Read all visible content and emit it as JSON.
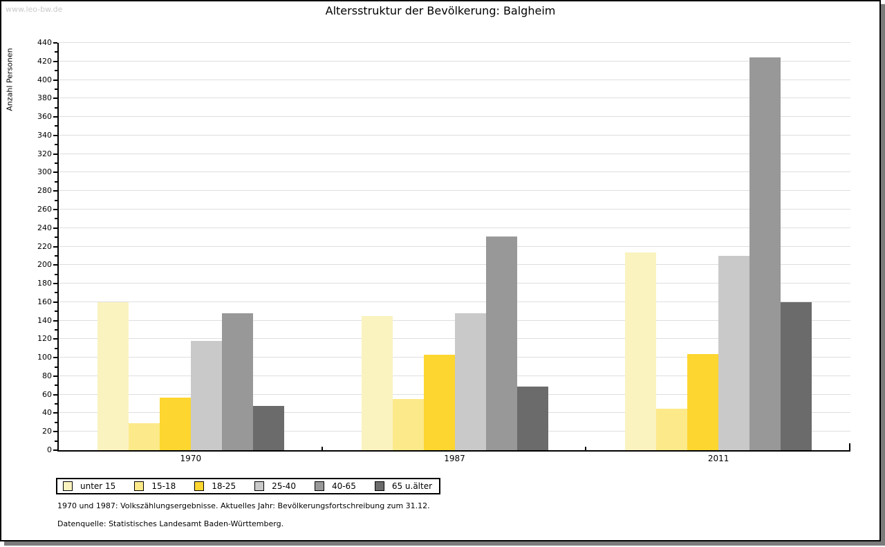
{
  "watermark": "www.leo-bw.de",
  "chart_data": {
    "type": "bar",
    "title": "Altersstruktur der Bevölkerung: Balgheim",
    "ylabel": "Anzahl Personen",
    "xlabel": "",
    "categories": [
      "1970",
      "1987",
      "2011"
    ],
    "series": [
      {
        "name": "unter 15",
        "color": "#faf3c0",
        "values": [
          160,
          145,
          214
        ]
      },
      {
        "name": "15-18",
        "color": "#fce98a",
        "values": [
          29,
          55,
          45
        ]
      },
      {
        "name": "18-25",
        "color": "#fdd62f",
        "values": [
          57,
          103,
          104
        ]
      },
      {
        "name": "25-40",
        "color": "#c9c9c9",
        "values": [
          118,
          148,
          210
        ]
      },
      {
        "name": "40-65",
        "color": "#989898",
        "values": [
          148,
          231,
          424
        ]
      },
      {
        "name": "65 u.älter",
        "color": "#6b6b6b",
        "values": [
          48,
          69,
          160
        ]
      }
    ],
    "ylim": [
      0,
      440
    ],
    "ytick_step": 20,
    "ytick_minor_step": 10,
    "grid": true,
    "legend_position": "bottom-left"
  },
  "footnotes": {
    "line1": "1970 und 1987: Volkszählungsergebnisse. Aktuelles Jahr: Bevölkerungsfortschreibung zum 31.12.",
    "line2": "Datenquelle: Statistisches Landesamt Baden-Württemberg."
  },
  "colors": {
    "background": "#ffffff",
    "border": "#000000",
    "shadow": "#7b7b7b",
    "gridline": "#dedede",
    "watermark": "#c9c9c9"
  }
}
